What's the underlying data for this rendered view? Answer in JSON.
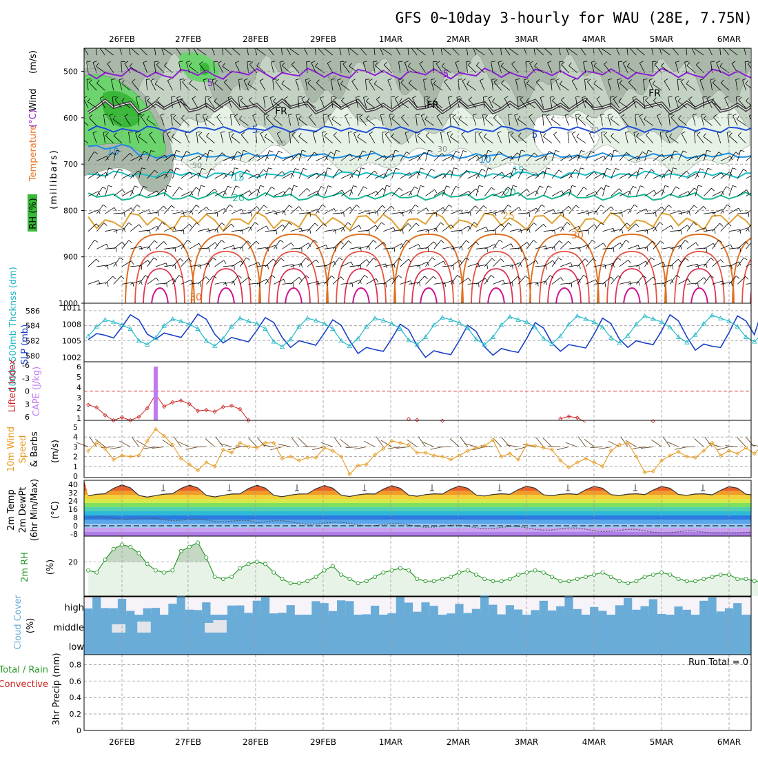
{
  "title": "GFS 0~10day 3-hourly for WAU (28E, 7.75N)",
  "dates": [
    "26FEB",
    "27FEB",
    "28FEB",
    "29FEB",
    "1MAR",
    "2MAR",
    "3MAR",
    "4MAR",
    "5MAR",
    "6MAR"
  ],
  "run_total_label": "Run Total = 0",
  "colors": {
    "rh_light": "#e6f2e6",
    "rh_mid": "#c4d2c4",
    "rh_dark": "#a9b8a9",
    "rh_green": "#6cd46c",
    "rh_green2": "#39b839",
    "t_purple": "#8a1fd1",
    "t_fr": "#000000",
    "t_blue": "#1f4fd6",
    "t_10": "#1c8ee0",
    "t_15": "#19bfc4",
    "t_20": "#17b890",
    "t_25": "#e0a030",
    "t_30": "#e07020",
    "t_35": "#e03050",
    "t_40": "#d01090",
    "slp": "#1a3fc8",
    "thick": "#22b8c8",
    "li": "#d02020",
    "cape": "#c07af0",
    "wind10": "#e69a20",
    "rh2m": "#2a9a2a",
    "cloud": "#6aacd8",
    "cloud_clear": "#f6f3f9"
  },
  "labels": {
    "panel1": {
      "wind": "Wind",
      "wind_unit": "(m/s)",
      "temp": "Temperature",
      "temp_unit": "(°C)",
      "rh": "RH (%)",
      "pressure": "(millibars)"
    },
    "panel2": {
      "thick": "1000~500mb Thcknss (dm)",
      "slp": "SLP (mb)"
    },
    "panel3": {
      "li": "Lifted Index",
      "cape": "CAPE (J/kg)"
    },
    "panel4": {
      "a": "10m Wind",
      "b": "Speed",
      "c": "& Barbs",
      "unit": "(m/s)"
    },
    "panel5": {
      "a": "2m Temp",
      "b": "2m DewPt",
      "c": "(6hr Min/Max)",
      "unit": "(°C)"
    },
    "panel6": {
      "a": "2m RH",
      "unit": "(%)"
    },
    "panel7": {
      "a": "Cloud Cover",
      "unit": "(%)",
      "high": "high",
      "middle": "middle",
      "low": "low"
    },
    "panel8": {
      "a": "Total / Rain",
      "b": "Convective",
      "c": "3hr Precip (mm)"
    }
  },
  "contour_labels": {
    "t5_top": "5",
    "fr": "FR",
    "t5": "5",
    "t10": "10",
    "t15": "15",
    "t20": "20",
    "t25": "25",
    "t30": "30",
    "rh50": "50",
    "rh30": "30"
  },
  "chart_data": [
    {
      "type": "contour",
      "name": "upper-air",
      "ylabel": "(millibars)",
      "yticks": [
        500,
        600,
        700,
        800,
        900,
        1000
      ],
      "ylim": [
        1000,
        450
      ],
      "contour_levels_temp": [
        -5,
        0,
        5,
        10,
        15,
        20,
        25,
        30,
        35,
        40
      ],
      "temp_base_pressure": {
        "-5": 505,
        "0": 575,
        "5": 625,
        "10": 682,
        "15": 722,
        "20": 770,
        "25": 820,
        "30": 870
      }
    },
    {
      "type": "line",
      "name": "slp-thickness",
      "yticks_left": [
        580,
        582,
        584,
        586
      ],
      "yticks_right": [
        1002,
        1005,
        1008,
        1011
      ],
      "thickness_dm": [
        582.6,
        583.9,
        584.8,
        584.5,
        584.1,
        583.6,
        582.0,
        581.5,
        582.4,
        584.0,
        584.9,
        584.6,
        584.2,
        583.6,
        582.0,
        581.3,
        582.3,
        583.9,
        585.0,
        584.6,
        584.3,
        583.6,
        581.9,
        581.2,
        582.2,
        583.9,
        585.0,
        584.7,
        584.3,
        583.6,
        582.0,
        581.3,
        582.3,
        583.9,
        585.0,
        584.7,
        584.3,
        583.6,
        582.1,
        581.5,
        582.5,
        584.1,
        585.1,
        584.8,
        584.4,
        583.7,
        582.2,
        581.5,
        582.5,
        584.1,
        585.2,
        584.8,
        584.5,
        583.8,
        582.3,
        581.6,
        582.6,
        584.2,
        585.3,
        584.9,
        584.5,
        583.8,
        582.4,
        581.7,
        582.7,
        584.2,
        585.3,
        584.9,
        584.5,
        583.8,
        582.5,
        581.8,
        582.8,
        584.3,
        585.4,
        585.0,
        584.6,
        583.9,
        582.5,
        581.9,
        582.9
      ],
      "slp_mb": [
        1005.2,
        1006.3,
        1006.0,
        1005.5,
        1007.5,
        1009.7,
        1008.8,
        1006.2,
        1005.3,
        1006.4,
        1006.0,
        1005.6,
        1007.6,
        1009.8,
        1008.9,
        1006.2,
        1004.6,
        1005.6,
        1005.2,
        1004.8,
        1006.9,
        1009.2,
        1008.3,
        1005.6,
        1003.8,
        1005.0,
        1004.6,
        1004.2,
        1006.4,
        1008.8,
        1007.8,
        1005.0,
        1002.7,
        1003.8,
        1003.4,
        1003.1,
        1005.4,
        1008.0,
        1007.0,
        1004.1,
        1002.0,
        1003.2,
        1002.8,
        1002.5,
        1005.0,
        1007.8,
        1006.7,
        1003.9,
        1002.4,
        1003.6,
        1003.2,
        1002.9,
        1005.4,
        1008.3,
        1007.3,
        1004.6,
        1003.1,
        1004.3,
        1004.0,
        1003.7,
        1006.2,
        1009.1,
        1008.1,
        1005.3,
        1003.8,
        1005.0,
        1004.6,
        1004.3,
        1006.8,
        1009.7,
        1008.6,
        1005.7,
        1003.3,
        1004.4,
        1004.0,
        1003.8,
        1006.5,
        1009.5,
        1008.6,
        1006.1,
        1010.9
      ]
    },
    {
      "type": "line",
      "name": "lifted-index-cape",
      "yticks_left": [
        -6,
        -3,
        0,
        3,
        6
      ],
      "yticks_right": [
        1,
        2,
        3,
        4,
        5,
        6
      ],
      "lifted_index": [
        3.2,
        3.8,
        5.6,
        6.9,
        6.1,
        7.2,
        6.0,
        4.0,
        0.8,
        3.6,
        2.6,
        2.2,
        3.0,
        4.6,
        4.4,
        4.8,
        3.7,
        3.4,
        4.2,
        7.0,
        7.6,
        8.0,
        8.0,
        8.0,
        8.0,
        8.0,
        8.0,
        8.0,
        8.0,
        8.0,
        8.0,
        8.0,
        8.0,
        8.0,
        8.0,
        8.0,
        8.0,
        8.0,
        8.0,
        8.0,
        8.0,
        8.0,
        8.0,
        8.0,
        8.0,
        8.0,
        8.0,
        8.0,
        8.0,
        8.0,
        8.0,
        8.0,
        8.0,
        8.0,
        8.0,
        8.0,
        8.0,
        8.0,
        8.0,
        8.0,
        8.0,
        8.0,
        8.0,
        8.0,
        8.0,
        8.0,
        8.0,
        8.0,
        8.0,
        8.0,
        8.0,
        8.0,
        8.0,
        8.0,
        8.0,
        8.0,
        8.0,
        8.0,
        8.0,
        8.0,
        8.0
      ],
      "cape_index": 8,
      "cape_value": 6
    },
    {
      "type": "line",
      "name": "10m-wind",
      "yticks": [
        0,
        1,
        2,
        3,
        4,
        5
      ],
      "speed_ms": [
        2.6,
        3.4,
        2.8,
        1.7,
        2.1,
        2.0,
        2.1,
        3.6,
        4.8,
        4.1,
        3.2,
        1.8,
        1.2,
        0.6,
        1.4,
        1.0,
        2.7,
        2.4,
        3.4,
        3.0,
        2.9,
        3.4,
        3.4,
        1.8,
        2.0,
        1.6,
        1.9,
        1.9,
        2.9,
        2.6,
        2.0,
        0.2,
        1.1,
        1.2,
        2.2,
        2.8,
        3.6,
        3.4,
        3.2,
        2.4,
        2.4,
        2.1,
        2.0,
        1.7,
        2.1,
        2.6,
        2.9,
        3.1,
        3.7,
        2.0,
        2.3,
        1.7,
        3.2,
        3.1,
        2.9,
        2.7,
        1.6,
        0.9,
        1.4,
        1.8,
        1.4,
        1.0,
        2.6,
        3.2,
        3.4,
        2.0,
        0.4,
        0.5,
        1.6,
        2.1,
        2.5,
        2.0,
        1.9,
        2.6,
        3.4,
        2.1,
        2.6,
        2.3,
        2.9,
        2.3,
        3.2
      ]
    },
    {
      "type": "area",
      "name": "2m-temp",
      "yticks": [
        -8,
        0,
        8,
        16,
        24,
        32,
        40
      ],
      "temp_range": [
        -9,
        44
      ]
    },
    {
      "type": "line",
      "name": "2m-rh",
      "yticks": [
        20
      ],
      "rh_percent": [
        16,
        15,
        21,
        26,
        28,
        27,
        24,
        19,
        16,
        15,
        16,
        25,
        27,
        29,
        22,
        13,
        12,
        13,
        17,
        19,
        20,
        19,
        15,
        12,
        10,
        10,
        11,
        13,
        16,
        18,
        14,
        12,
        10,
        11,
        13,
        15,
        16,
        17,
        16,
        12,
        11,
        11,
        12,
        13,
        15,
        16,
        14,
        12,
        11,
        11,
        12,
        14,
        15,
        16,
        15,
        13,
        11,
        11,
        12,
        13,
        14,
        15,
        13,
        11,
        10,
        11,
        13,
        14,
        15,
        14,
        12,
        11,
        11,
        12,
        13,
        14,
        14,
        12,
        12,
        11,
        11
      ]
    },
    {
      "type": "bar",
      "name": "cloud-cover",
      "rows": [
        "high",
        "middle",
        "low"
      ]
    },
    {
      "type": "bar",
      "name": "precip",
      "yticks": [
        0,
        0.2,
        0.4,
        0.6,
        0.8
      ],
      "values": []
    }
  ]
}
